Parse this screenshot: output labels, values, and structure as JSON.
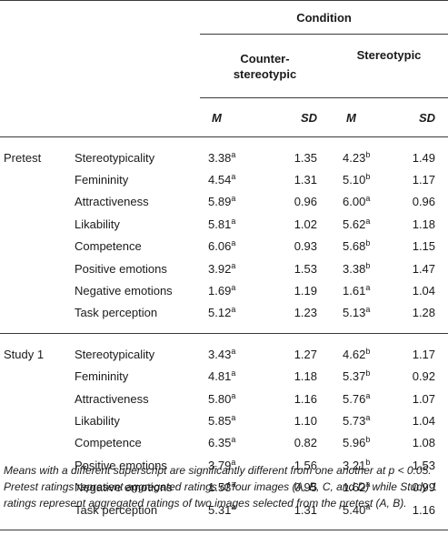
{
  "header": {
    "condition": "Condition",
    "group1": "Counter-stereotypic",
    "group1_line1": "Counter-",
    "group1_line2": "stereotypic",
    "group2": "Stereotypic",
    "m": "M",
    "sd": "SD"
  },
  "sections": [
    {
      "label": "Pretest",
      "rows": [
        {
          "measure": "Stereotypicality",
          "c_m": "3.38",
          "c_sup": "a",
          "c_sd": "1.35",
          "s_m": "4.23",
          "s_sup": "b",
          "s_sd": "1.49"
        },
        {
          "measure": "Femininity",
          "c_m": "4.54",
          "c_sup": "a",
          "c_sd": "1.31",
          "s_m": "5.10",
          "s_sup": "b",
          "s_sd": "1.17"
        },
        {
          "measure": "Attractiveness",
          "c_m": "5.89",
          "c_sup": "a",
          "c_sd": "0.96",
          "s_m": "6.00",
          "s_sup": "a",
          "s_sd": "0.96"
        },
        {
          "measure": "Likability",
          "c_m": "5.81",
          "c_sup": "a",
          "c_sd": "1.02",
          "s_m": "5.62",
          "s_sup": "a",
          "s_sd": "1.18"
        },
        {
          "measure": "Competence",
          "c_m": "6.06",
          "c_sup": "a",
          "c_sd": "0.93",
          "s_m": "5.68",
          "s_sup": "b",
          "s_sd": "1.15"
        },
        {
          "measure": "Positive emotions",
          "c_m": "3.92",
          "c_sup": "a",
          "c_sd": "1.53",
          "s_m": "3.38",
          "s_sup": "b",
          "s_sd": "1.47"
        },
        {
          "measure": "Negative emotions",
          "c_m": "1.69",
          "c_sup": "a",
          "c_sd": "1.19",
          "s_m": "1.61",
          "s_sup": "a",
          "s_sd": "1.04"
        },
        {
          "measure": "Task perception",
          "c_m": "5.12",
          "c_sup": "a",
          "c_sd": "1.23",
          "s_m": "5.13",
          "s_sup": "a",
          "s_sd": "1.28"
        }
      ]
    },
    {
      "label": "Study 1",
      "rows": [
        {
          "measure": "Stereotypicality",
          "c_m": "3.43",
          "c_sup": "a",
          "c_sd": "1.27",
          "s_m": "4.62",
          "s_sup": "b",
          "s_sd": "1.17"
        },
        {
          "measure": "Femininity",
          "c_m": "4.81",
          "c_sup": "a",
          "c_sd": "1.18",
          "s_m": "5.37",
          "s_sup": "b",
          "s_sd": "0.92"
        },
        {
          "measure": "Attractiveness",
          "c_m": "5.80",
          "c_sup": "a",
          "c_sd": "1.16",
          "s_m": "5.76",
          "s_sup": "a",
          "s_sd": "1.07"
        },
        {
          "measure": "Likability",
          "c_m": "5.85",
          "c_sup": "a",
          "c_sd": "1.10",
          "s_m": "5.73",
          "s_sup": "a",
          "s_sd": "1.04"
        },
        {
          "measure": "Competence",
          "c_m": "6.35",
          "c_sup": "a",
          "c_sd": "0.82",
          "s_m": "5.96",
          "s_sup": "b",
          "s_sd": "1.08"
        },
        {
          "measure": "Positive emotions",
          "c_m": "3.79",
          "c_sup": "a",
          "c_sd": "1.56",
          "s_m": "3.21",
          "s_sup": "b",
          "s_sd": "1.53"
        },
        {
          "measure": "Negative emotions",
          "c_m": "1.53",
          "c_sup": "a",
          "c_sd": "0.95",
          "s_m": "1.62",
          "s_sup": "a",
          "s_sd": "0.99"
        },
        {
          "measure": "Task perception",
          "c_m": "5.31",
          "c_sup": "a",
          "c_sd": "1.31",
          "s_m": "5.40",
          "s_sup": "a",
          "s_sd": "1.16"
        }
      ]
    }
  ],
  "note": "Means with a different superscript are significantly different from one another at p < 0.05. Pretest ratings represent aggregated ratings of four images (A, B, C, and D) while Study 1 ratings represent aggregated ratings of two images selected from the pretest (A, B)."
}
